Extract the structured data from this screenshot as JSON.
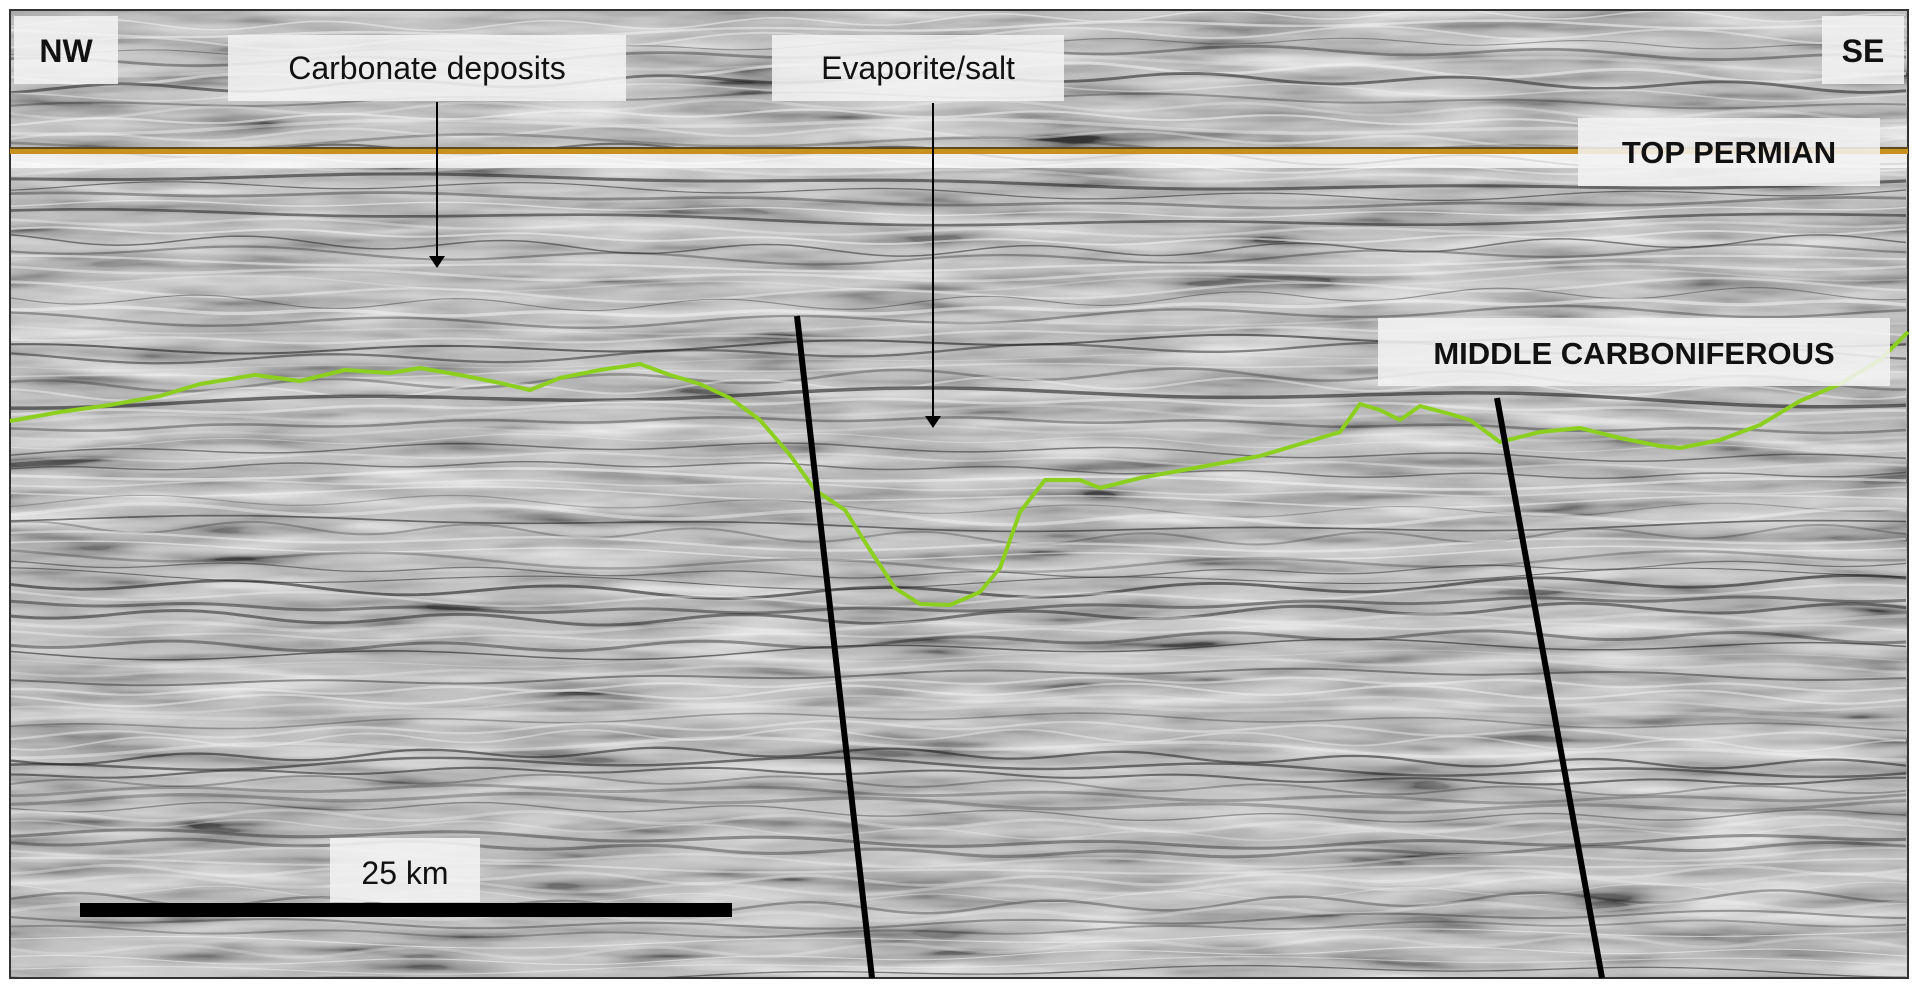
{
  "figure": {
    "labels": {
      "nw": "NW",
      "se": "SE",
      "carbonate": "Carbonate deposits",
      "evaporite": "Evaporite/salt",
      "top_permian": "TOP PERMIAN",
      "middle_carboniferous": "MIDDLE CARBONIFEROUS",
      "scale": "25 km"
    },
    "colors": {
      "top_permian_line": "#c8901e",
      "carboniferous_line": "#8ccf1e",
      "fault": "#000000",
      "seismic_background": "#bdbdbd"
    }
  }
}
